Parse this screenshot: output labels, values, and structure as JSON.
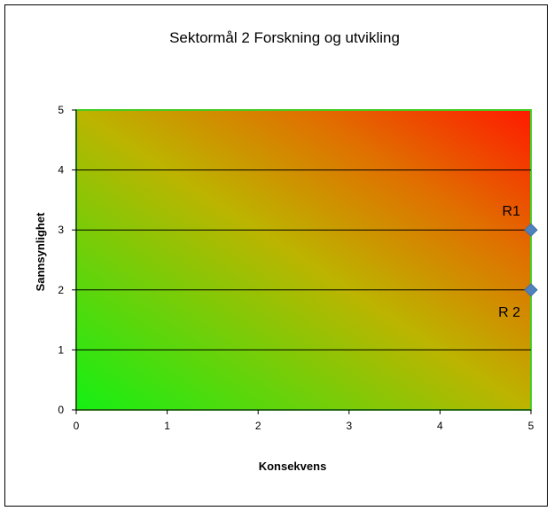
{
  "chart_data": {
    "type": "scatter",
    "title": "Sektormål 2 Forskning og utvikling",
    "xlabel": "Konsekvens",
    "ylabel": "Sannsynlighet",
    "xlim": [
      0,
      5
    ],
    "ylim": [
      0,
      5
    ],
    "xticks": [
      "0",
      "1",
      "2",
      "3",
      "4",
      "5"
    ],
    "yticks": [
      "0",
      "1",
      "2",
      "3",
      "4",
      "5"
    ],
    "grid": "horizontal",
    "background": "gradient green (low risk, bottom-left) to red (high risk, top-right)",
    "colors": {
      "low": "#14f014",
      "mid": "#c8a000",
      "high": "#ff1a00",
      "plot_border": "#44cc22",
      "gridline": "#000000",
      "marker": "#4f81bd"
    },
    "points": [
      {
        "label": "R1",
        "x": 5,
        "y": 3
      },
      {
        "label": "R 2",
        "x": 5,
        "y": 2
      }
    ]
  }
}
